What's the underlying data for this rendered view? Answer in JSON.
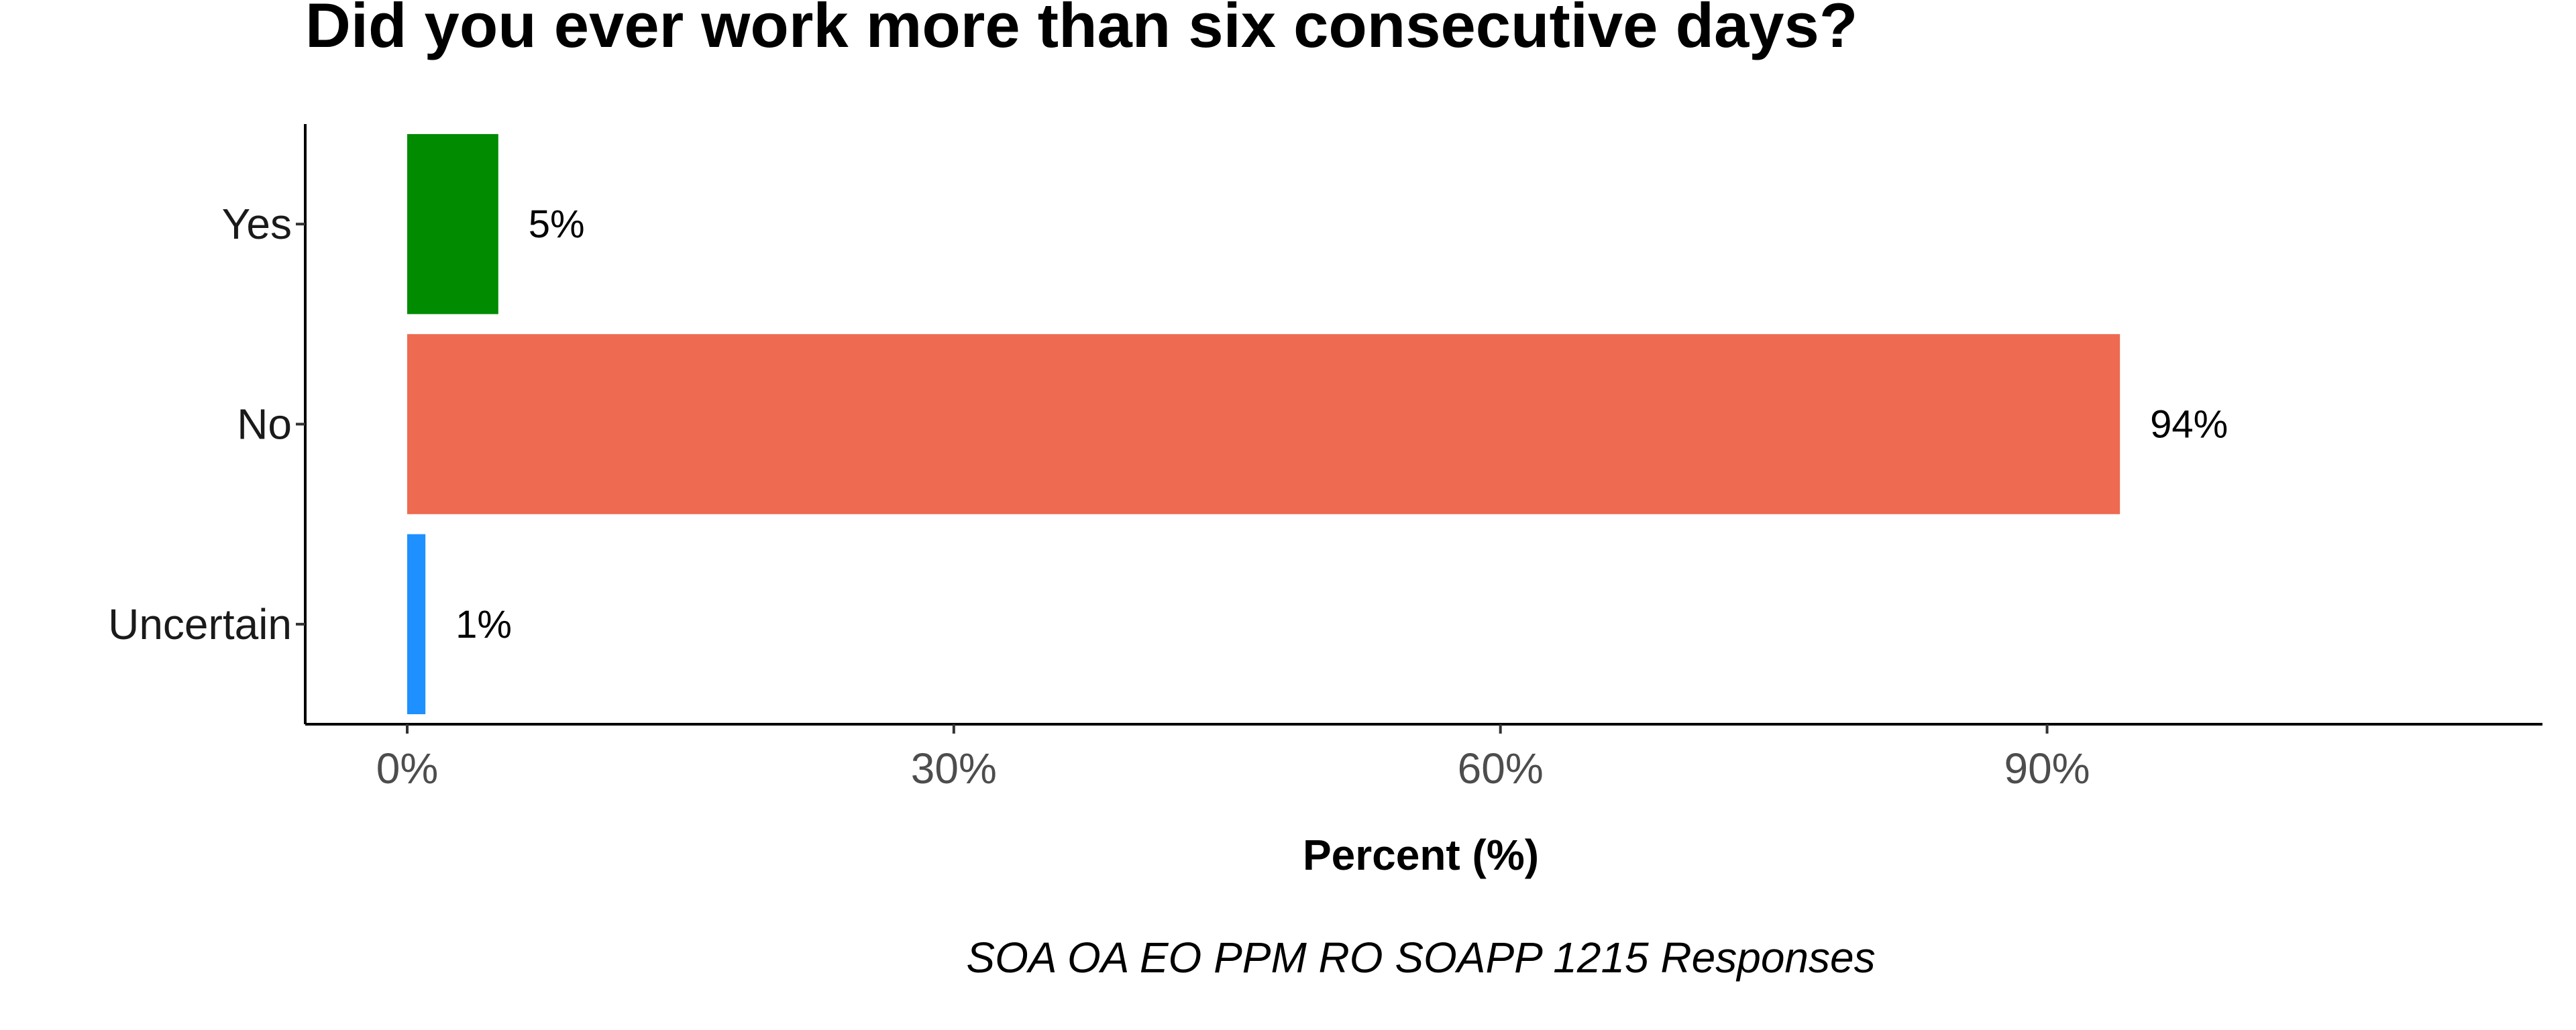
{
  "chart_data": {
    "type": "bar",
    "orientation": "horizontal",
    "title": "Did you ever work more than six consecutive days?",
    "xlabel": "Percent (%)",
    "ylabel": "",
    "caption": "SOA OA EO PPM RO SOAPP 1215 Responses",
    "categories": [
      "Yes",
      "No",
      "Uncertain"
    ],
    "values": [
      5,
      94,
      1
    ],
    "data_labels": [
      "5%",
      "94%",
      "1%"
    ],
    "colors": [
      "#008B00",
      "#EE6A50",
      "#1E90FF"
    ],
    "xlim": [
      0,
      114
    ],
    "xticks": [
      0,
      30,
      60,
      90
    ],
    "xtick_labels": [
      "0%",
      "30%",
      "60%",
      "90%"
    ],
    "grid": false,
    "legend": "none"
  }
}
